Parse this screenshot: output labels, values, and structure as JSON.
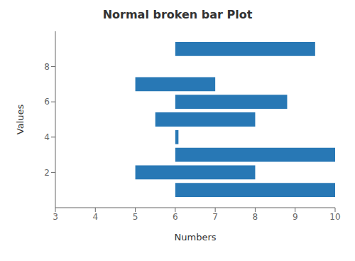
{
  "chart_data": {
    "type": "broken_barh",
    "title": "Normal broken bar Plot",
    "xlabel": "Numbers",
    "ylabel": "Values",
    "xlim": [
      3,
      10
    ],
    "ylim": [
      0,
      10
    ],
    "xticks": [
      3,
      4,
      5,
      6,
      7,
      8,
      9,
      10
    ],
    "yticks": [
      2,
      4,
      6,
      8
    ],
    "color": "#2878b5",
    "y": [
      1,
      2,
      3,
      4,
      5,
      6,
      7,
      9
    ],
    "xranges": [
      [
        [
          6,
          4
        ]
      ],
      [
        [
          5,
          3
        ]
      ],
      [
        [
          6,
          4
        ]
      ],
      [
        [
          6,
          0.08
        ]
      ],
      [
        [
          5.5,
          2.5
        ]
      ],
      [
        [
          6,
          2.8
        ]
      ],
      [
        [
          5,
          2
        ]
      ],
      [
        [
          6,
          3.5
        ]
      ]
    ]
  }
}
